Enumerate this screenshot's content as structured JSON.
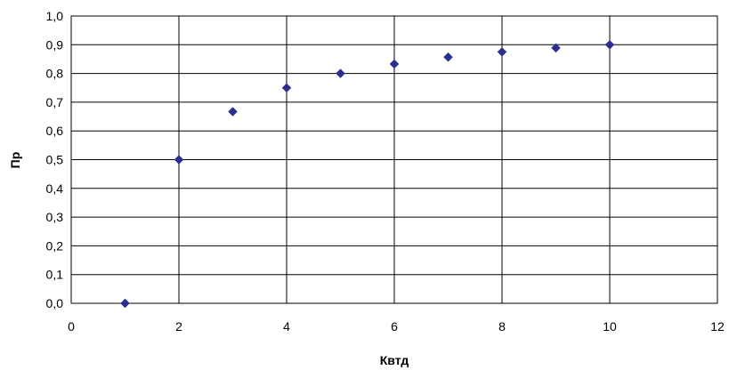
{
  "chart_data": {
    "type": "scatter",
    "xlabel": "Квтд",
    "ylabel": "Пр",
    "xlim": [
      0,
      12
    ],
    "ylim": [
      0,
      1.0
    ],
    "x_ticks": [
      0,
      2,
      4,
      6,
      8,
      10,
      12
    ],
    "y_ticks": [
      0,
      0.1,
      0.2,
      0.3,
      0.4,
      0.5,
      0.6,
      0.7,
      0.8,
      0.9,
      1.0
    ],
    "x_tick_labels": [
      "0",
      "2",
      "4",
      "6",
      "8",
      "10",
      "12"
    ],
    "y_tick_labels": [
      "0,0",
      "0,1",
      "0,2",
      "0,3",
      "0,4",
      "0,5",
      "0,6",
      "0,7",
      "0,8",
      "0,9",
      "1,0"
    ],
    "grid": true,
    "legend": "none",
    "marker": "diamond",
    "series": [
      {
        "x": [
          1,
          2,
          3,
          4,
          5,
          6,
          7,
          8,
          9,
          10
        ],
        "y": [
          0.0,
          0.5,
          0.667,
          0.75,
          0.8,
          0.833,
          0.857,
          0.875,
          0.889,
          0.9
        ],
        "color": "#2B2F8F"
      }
    ]
  }
}
